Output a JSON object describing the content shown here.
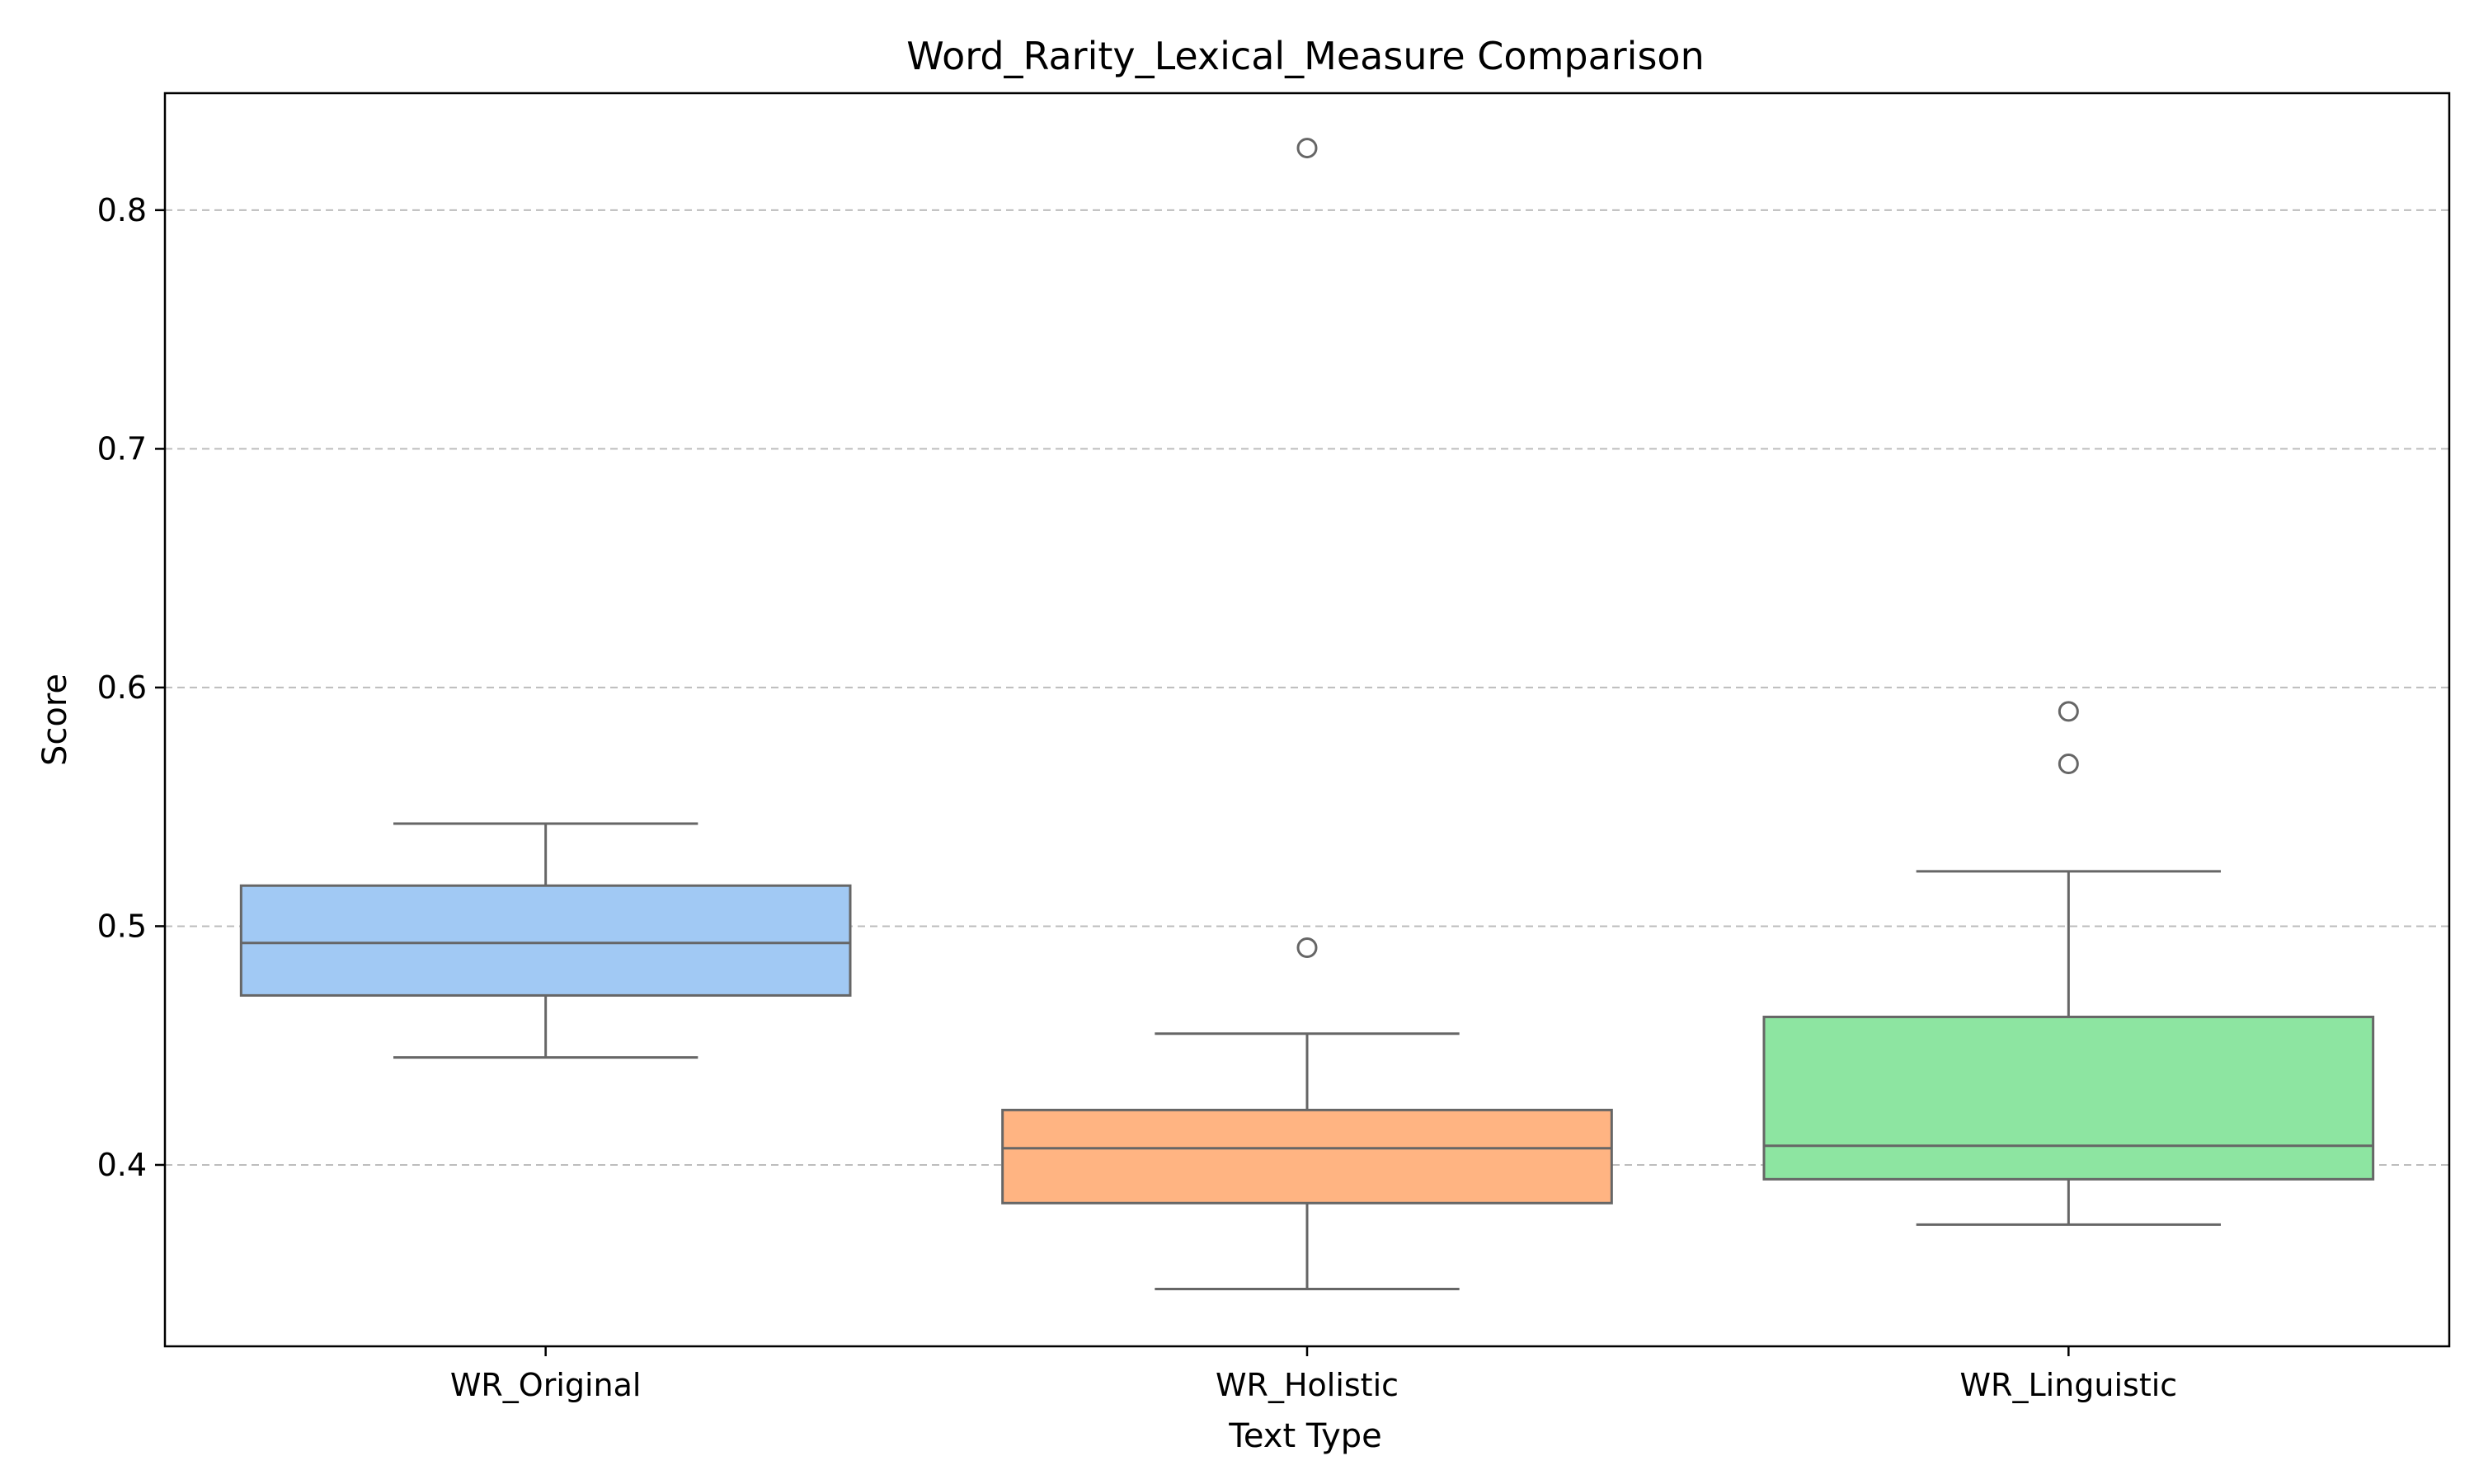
{
  "chart_data": {
    "type": "box",
    "title": "Word_Rarity_Lexical_Measure Comparison",
    "xlabel": "Text Type",
    "ylabel": "Score",
    "ylim": [
      0.324,
      0.849
    ],
    "yticks": [
      0.4,
      0.5,
      0.6,
      0.7,
      0.8
    ],
    "ytick_labels": [
      "0.4",
      "0.5",
      "0.6",
      "0.7",
      "0.8"
    ],
    "grid": {
      "axis": "y",
      "style": "dashed"
    },
    "categories": [
      "WR_Original",
      "WR_Holistic",
      "WR_Linguistic"
    ],
    "boxes": [
      {
        "category": "WR_Original",
        "whisker_low": 0.445,
        "q1": 0.471,
        "median": 0.493,
        "q3": 0.517,
        "whisker_high": 0.543,
        "outliers": [],
        "color": "#a1c9f4"
      },
      {
        "category": "WR_Holistic",
        "whisker_low": 0.348,
        "q1": 0.384,
        "median": 0.407,
        "q3": 0.423,
        "whisker_high": 0.455,
        "outliers": [
          0.491,
          0.826
        ],
        "color": "#ffb482"
      },
      {
        "category": "WR_Linguistic",
        "whisker_low": 0.375,
        "q1": 0.394,
        "median": 0.408,
        "q3": 0.462,
        "whisker_high": 0.523,
        "outliers": [
          0.568,
          0.59
        ],
        "color": "#8de5a1"
      }
    ]
  }
}
